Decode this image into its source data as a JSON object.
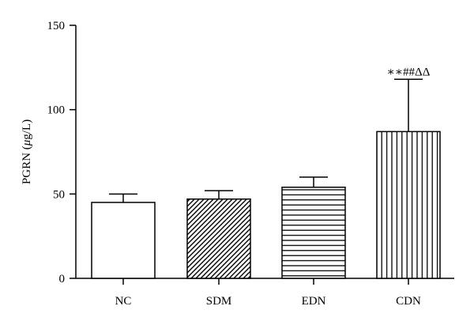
{
  "chart_data": {
    "type": "bar",
    "categories": [
      "NC",
      "SDM",
      "EDN",
      "CDN"
    ],
    "values": [
      45,
      47,
      54,
      87
    ],
    "errors": [
      5,
      5,
      6,
      31
    ],
    "patterns": [
      "none",
      "diagonal",
      "horizontal",
      "vertical"
    ],
    "ylabel_prefix": "PGRN (",
    "ylabel_mu": "μ",
    "ylabel_suffix": "g/L)",
    "xlabel": "",
    "title": "",
    "ylim": [
      0,
      150
    ],
    "yticks": [
      0,
      50,
      100,
      150
    ],
    "annotations": [
      {
        "category": "CDN",
        "text": "∗∗##ΔΔ"
      }
    ],
    "grid": false,
    "colors": {
      "bar_fill": "#ffffff",
      "stroke": "#000000"
    }
  }
}
